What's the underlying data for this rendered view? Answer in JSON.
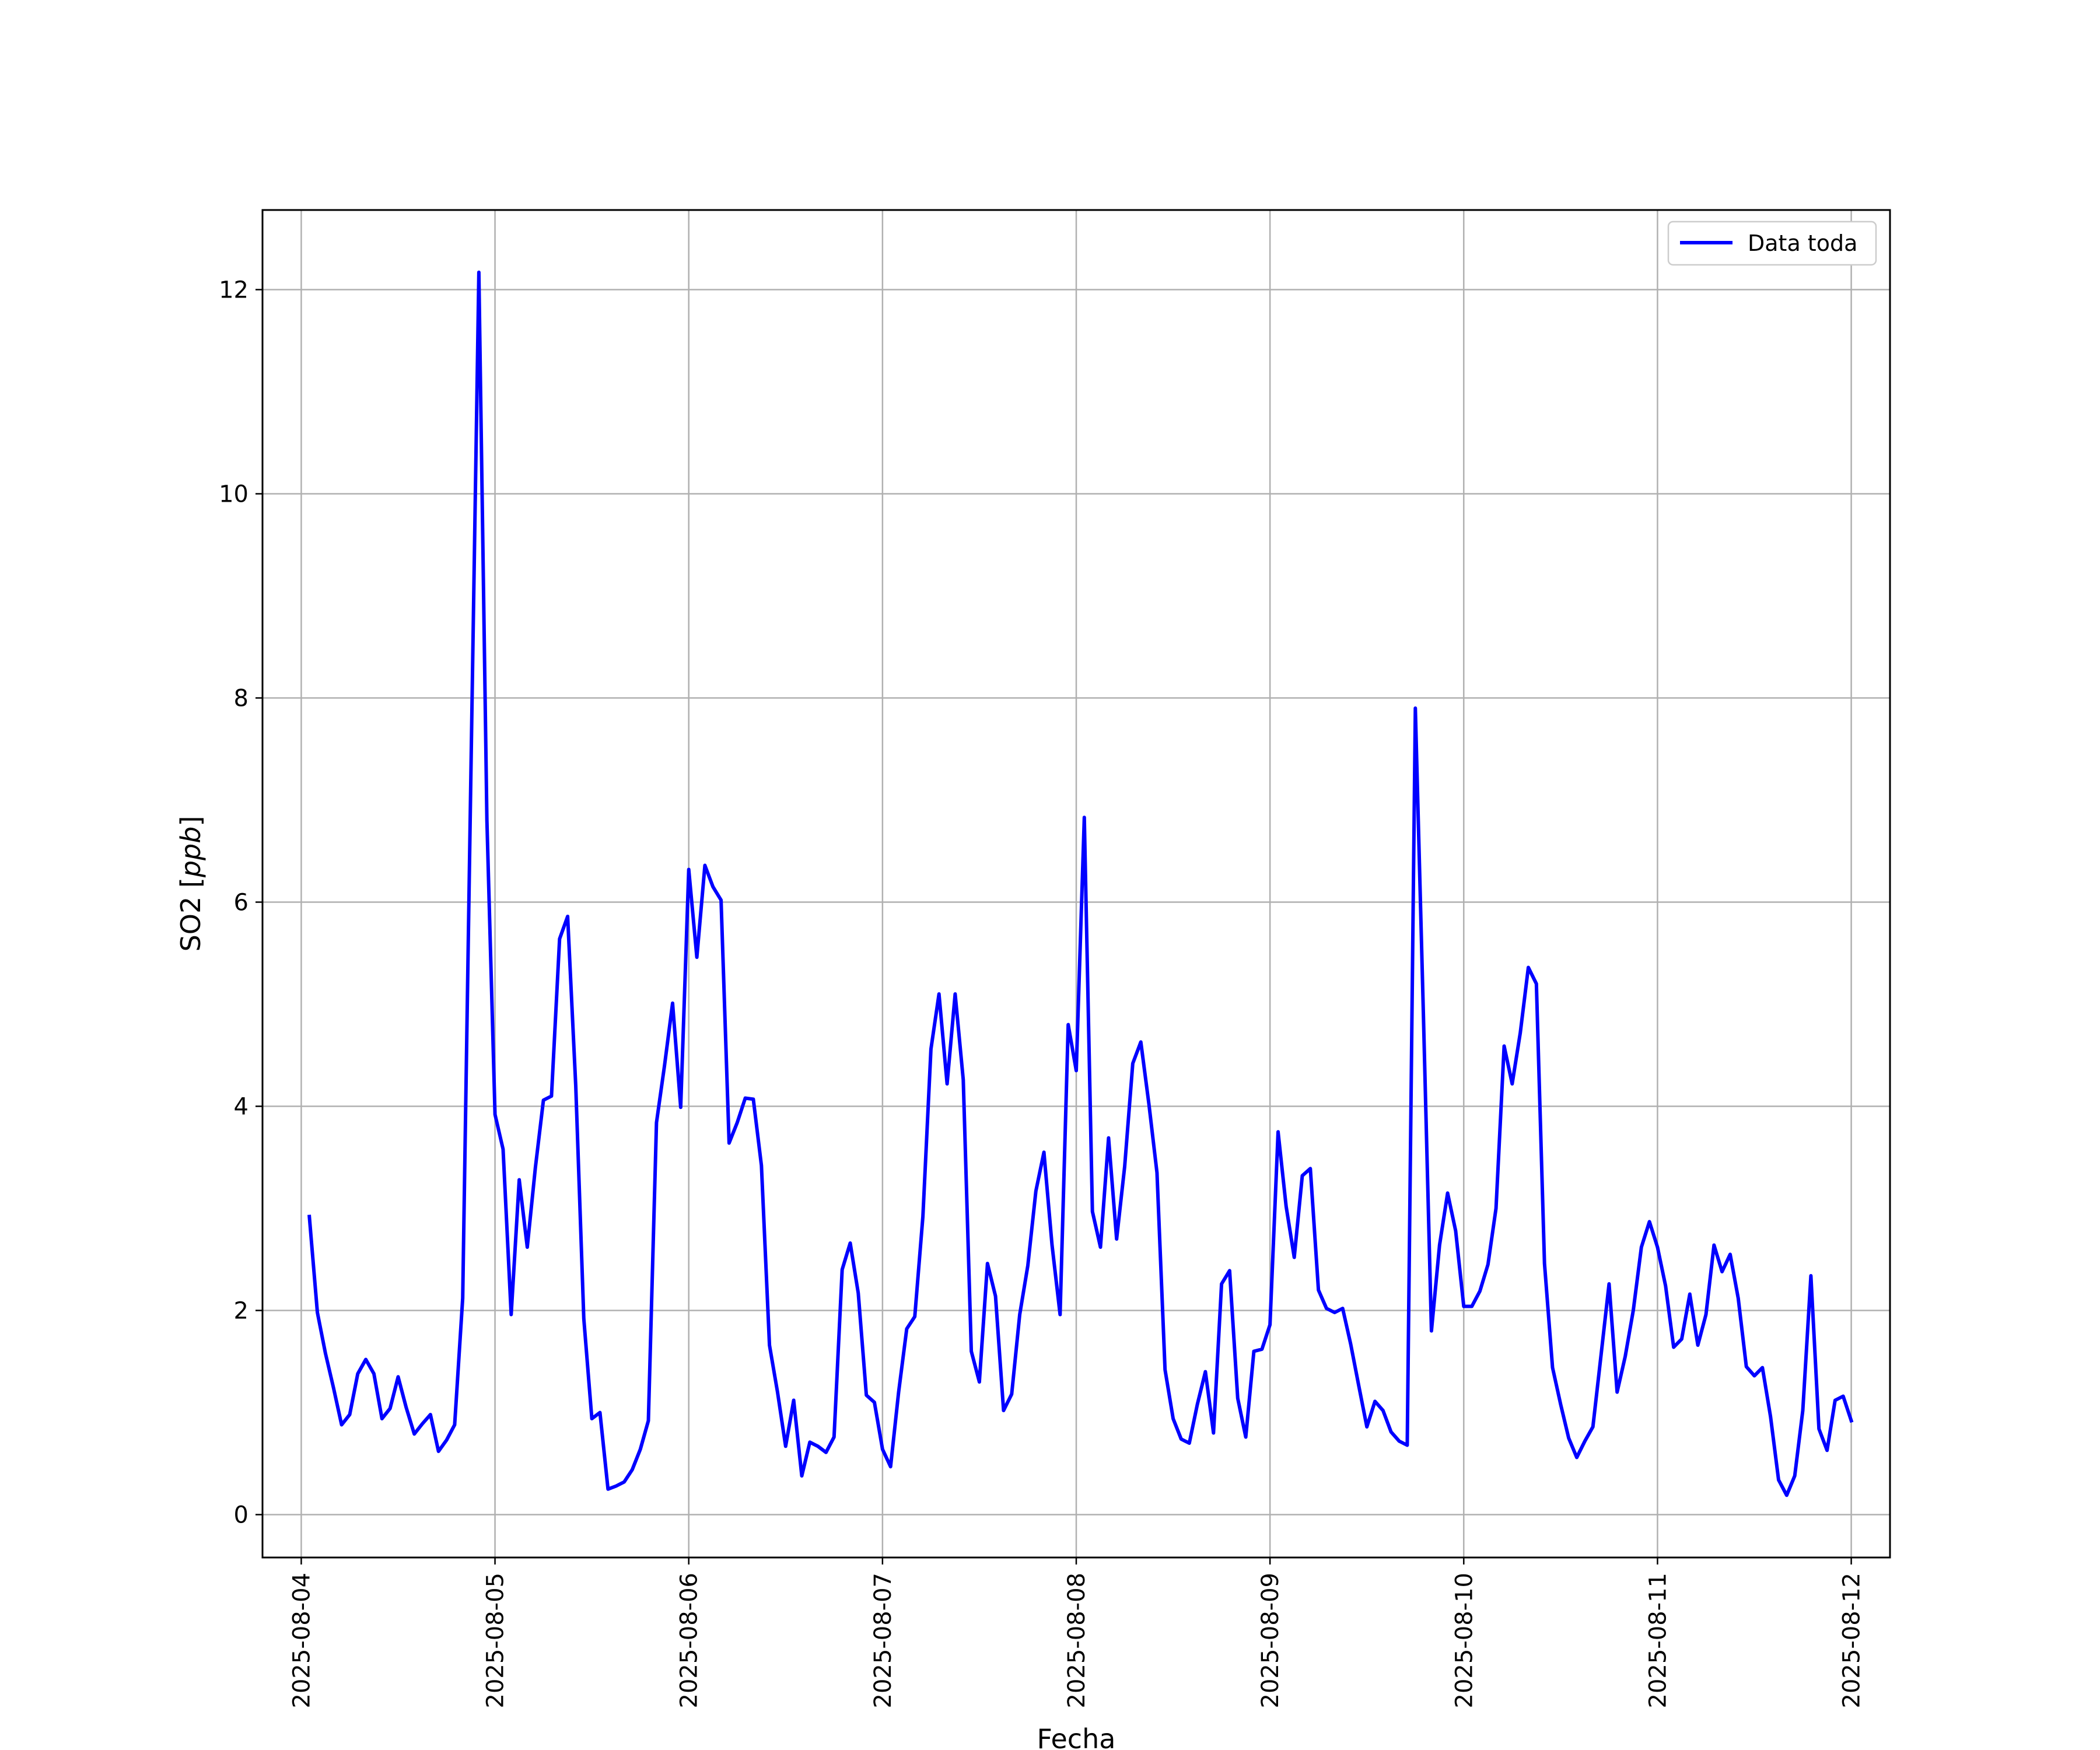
{
  "chart_data": {
    "type": "line",
    "title": "",
    "xlabel": "Fecha",
    "ylabel": "SO2 [ppb]",
    "ylabel_parts": {
      "plain": "SO2 [",
      "italic": "ppb",
      "close": "]"
    },
    "xlim": [
      "2025-08-03T19:12",
      "2025-08-12T04:48"
    ],
    "ylim": [
      -0.42,
      12.78
    ],
    "x_ticks": [
      "2025-08-04",
      "2025-08-05",
      "2025-08-06",
      "2025-08-07",
      "2025-08-08",
      "2025-08-09",
      "2025-08-10",
      "2025-08-11",
      "2025-08-12"
    ],
    "y_ticks": [
      0,
      2,
      4,
      6,
      8,
      10,
      12
    ],
    "y_tick_labels": [
      "0",
      "2",
      "4",
      "6",
      "8",
      "10",
      "12"
    ],
    "grid": true,
    "legend": "top-right",
    "series": [
      {
        "name": "Data toda",
        "color": "#0000ff",
        "x": [
          "2025-08-04T01:00",
          "2025-08-04T02:00",
          "2025-08-04T03:00",
          "2025-08-04T04:00",
          "2025-08-04T05:00",
          "2025-08-04T06:00",
          "2025-08-04T07:00",
          "2025-08-04T08:00",
          "2025-08-04T09:00",
          "2025-08-04T10:00",
          "2025-08-04T11:00",
          "2025-08-04T12:00",
          "2025-08-04T13:00",
          "2025-08-04T14:00",
          "2025-08-04T15:00",
          "2025-08-04T16:00",
          "2025-08-04T17:00",
          "2025-08-04T18:00",
          "2025-08-04T19:00",
          "2025-08-04T20:00",
          "2025-08-04T21:00",
          "2025-08-04T22:00",
          "2025-08-04T23:00",
          "2025-08-05T00:00",
          "2025-08-05T01:00",
          "2025-08-05T02:00",
          "2025-08-05T03:00",
          "2025-08-05T04:00",
          "2025-08-05T05:00",
          "2025-08-05T06:00",
          "2025-08-05T07:00",
          "2025-08-05T08:00",
          "2025-08-05T09:00",
          "2025-08-05T10:00",
          "2025-08-05T11:00",
          "2025-08-05T12:00",
          "2025-08-05T13:00",
          "2025-08-05T14:00",
          "2025-08-05T15:00",
          "2025-08-05T16:00",
          "2025-08-05T17:00",
          "2025-08-05T18:00",
          "2025-08-05T19:00",
          "2025-08-05T20:00",
          "2025-08-05T21:00",
          "2025-08-05T22:00",
          "2025-08-05T23:00",
          "2025-08-06T00:00",
          "2025-08-06T01:00",
          "2025-08-06T02:00",
          "2025-08-06T03:00",
          "2025-08-06T04:00",
          "2025-08-06T05:00",
          "2025-08-06T06:00",
          "2025-08-06T07:00",
          "2025-08-06T08:00",
          "2025-08-06T09:00",
          "2025-08-06T10:00",
          "2025-08-06T11:00",
          "2025-08-06T12:00",
          "2025-08-06T13:00",
          "2025-08-06T14:00",
          "2025-08-06T15:00",
          "2025-08-06T16:00",
          "2025-08-06T17:00",
          "2025-08-06T18:00",
          "2025-08-06T19:00",
          "2025-08-06T20:00",
          "2025-08-06T21:00",
          "2025-08-06T22:00",
          "2025-08-06T23:00",
          "2025-08-07T00:00",
          "2025-08-07T01:00",
          "2025-08-07T02:00",
          "2025-08-07T03:00",
          "2025-08-07T04:00",
          "2025-08-07T05:00",
          "2025-08-07T06:00",
          "2025-08-07T07:00",
          "2025-08-07T08:00",
          "2025-08-07T09:00",
          "2025-08-07T10:00",
          "2025-08-07T11:00",
          "2025-08-07T12:00",
          "2025-08-07T13:00",
          "2025-08-07T14:00",
          "2025-08-07T15:00",
          "2025-08-07T16:00",
          "2025-08-07T17:00",
          "2025-08-07T18:00",
          "2025-08-07T19:00",
          "2025-08-07T20:00",
          "2025-08-07T21:00",
          "2025-08-07T22:00",
          "2025-08-07T23:00",
          "2025-08-08T00:00",
          "2025-08-08T01:00",
          "2025-08-08T02:00",
          "2025-08-08T03:00",
          "2025-08-08T04:00",
          "2025-08-08T05:00",
          "2025-08-08T06:00",
          "2025-08-08T07:00",
          "2025-08-08T08:00",
          "2025-08-08T09:00",
          "2025-08-08T10:00",
          "2025-08-08T11:00",
          "2025-08-08T12:00",
          "2025-08-08T13:00",
          "2025-08-08T14:00",
          "2025-08-08T15:00",
          "2025-08-08T16:00",
          "2025-08-08T17:00",
          "2025-08-08T18:00",
          "2025-08-08T19:00",
          "2025-08-08T20:00",
          "2025-08-08T21:00",
          "2025-08-08T22:00",
          "2025-08-08T23:00",
          "2025-08-09T00:00",
          "2025-08-09T01:00",
          "2025-08-09T02:00",
          "2025-08-09T03:00",
          "2025-08-09T04:00",
          "2025-08-09T05:00",
          "2025-08-09T06:00",
          "2025-08-09T07:00",
          "2025-08-09T08:00",
          "2025-08-09T09:00",
          "2025-08-09T10:00",
          "2025-08-09T11:00",
          "2025-08-09T12:00",
          "2025-08-09T13:00",
          "2025-08-09T14:00",
          "2025-08-09T15:00",
          "2025-08-09T16:00",
          "2025-08-09T17:00",
          "2025-08-09T18:00",
          "2025-08-09T19:00",
          "2025-08-09T20:00",
          "2025-08-09T21:00",
          "2025-08-09T22:00",
          "2025-08-09T23:00",
          "2025-08-10T00:00",
          "2025-08-10T01:00",
          "2025-08-10T02:00",
          "2025-08-10T03:00",
          "2025-08-10T04:00",
          "2025-08-10T05:00",
          "2025-08-10T06:00",
          "2025-08-10T07:00",
          "2025-08-10T08:00",
          "2025-08-10T09:00",
          "2025-08-10T10:00",
          "2025-08-10T11:00",
          "2025-08-10T12:00",
          "2025-08-10T13:00",
          "2025-08-10T14:00",
          "2025-08-10T15:00",
          "2025-08-10T16:00",
          "2025-08-10T17:00",
          "2025-08-10T18:00",
          "2025-08-10T19:00",
          "2025-08-10T20:00",
          "2025-08-10T21:00",
          "2025-08-10T22:00",
          "2025-08-10T23:00",
          "2025-08-11T00:00",
          "2025-08-11T01:00",
          "2025-08-11T02:00",
          "2025-08-11T03:00",
          "2025-08-11T04:00",
          "2025-08-11T05:00",
          "2025-08-11T06:00",
          "2025-08-11T07:00",
          "2025-08-11T08:00",
          "2025-08-11T09:00",
          "2025-08-11T10:00",
          "2025-08-11T11:00",
          "2025-08-11T12:00",
          "2025-08-11T13:00",
          "2025-08-11T14:00",
          "2025-08-11T15:00",
          "2025-08-11T16:00",
          "2025-08-11T17:00",
          "2025-08-11T18:00",
          "2025-08-11T19:00",
          "2025-08-11T20:00",
          "2025-08-11T21:00",
          "2025-08-11T22:00",
          "2025-08-11T23:00",
          "2025-08-12T00:00"
        ],
        "y": [
          2.92,
          1.98,
          1.58,
          1.24,
          0.88,
          0.98,
          1.38,
          1.52,
          1.38,
          0.94,
          1.04,
          1.35,
          1.05,
          0.79,
          0.89,
          0.98,
          0.62,
          0.73,
          0.88,
          2.12,
          7.2,
          12.17,
          6.8,
          3.92,
          3.58,
          1.96,
          3.28,
          2.62,
          3.4,
          4.06,
          4.1,
          5.64,
          5.86,
          4.2,
          1.92,
          0.94,
          1.0,
          0.25,
          0.28,
          0.32,
          0.44,
          0.64,
          0.92,
          3.84,
          4.4,
          5.01,
          3.99,
          6.32,
          5.46,
          6.36,
          6.15,
          6.02,
          3.64,
          3.84,
          4.08,
          4.07,
          3.42,
          1.66,
          1.2,
          0.67,
          1.12,
          0.38,
          0.71,
          0.67,
          0.61,
          0.76,
          2.4,
          2.66,
          2.17,
          1.17,
          1.1,
          0.64,
          0.47,
          1.2,
          1.82,
          1.94,
          2.92,
          4.56,
          5.1,
          4.22,
          5.1,
          4.26,
          1.6,
          1.3,
          2.46,
          2.14,
          1.02,
          1.18,
          1.96,
          2.44,
          3.17,
          3.55,
          2.64,
          1.96,
          4.8,
          4.35,
          6.83,
          2.97,
          2.62,
          3.69,
          2.7,
          3.41,
          4.42,
          4.63,
          4.02,
          3.35,
          1.42,
          0.94,
          0.74,
          0.7,
          1.08,
          1.4,
          0.8,
          2.26,
          2.39,
          1.14,
          0.76,
          1.6,
          1.62,
          1.86,
          3.75,
          3.02,
          2.52,
          3.32,
          3.39,
          2.2,
          2.02,
          1.98,
          2.02,
          1.67,
          1.26,
          0.86,
          1.11,
          1.02,
          0.81,
          0.72,
          0.68,
          7.9,
          4.9,
          1.8,
          2.64,
          3.15,
          2.78,
          2.04,
          2.04,
          2.19,
          2.45,
          3.0,
          4.59,
          4.22,
          4.72,
          5.36,
          5.2,
          2.46,
          1.44,
          1.08,
          0.75,
          0.56,
          0.72,
          0.86,
          1.56,
          2.26,
          1.2,
          1.55,
          2.0,
          2.62,
          2.87,
          2.62,
          2.24,
          1.64,
          1.72,
          2.16,
          1.66,
          1.96,
          2.64,
          2.38,
          2.55,
          2.12,
          1.45,
          1.36,
          1.44,
          0.96,
          0.34,
          0.19,
          0.38,
          1.02,
          2.34,
          0.84,
          0.63,
          1.12,
          1.16,
          0.92
        ]
      }
    ]
  }
}
